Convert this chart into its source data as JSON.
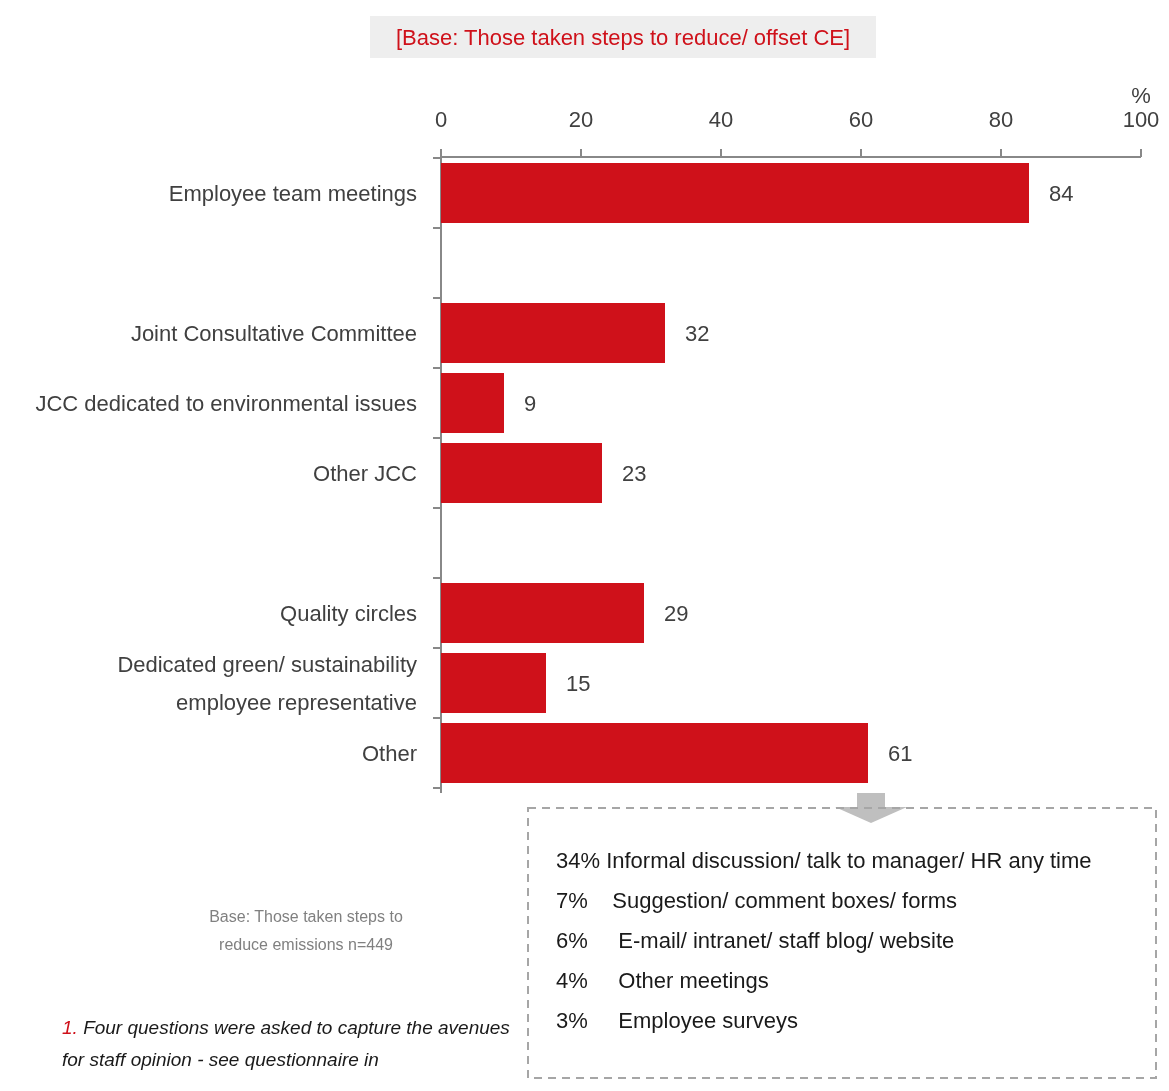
{
  "chart_data": {
    "type": "bar",
    "orientation": "horizontal",
    "title": "[Base: Those taken steps to reduce/ offset CE]",
    "xlabel": "%",
    "categories": [
      "Employee team meetings",
      null,
      "Joint Consultative Committee",
      "JCC dedicated to environmental issues",
      "Other JCC",
      null,
      "Quality circles",
      "Dedicated green/ sustainability employee representative",
      "Other"
    ],
    "values": [
      84,
      null,
      32,
      9,
      23,
      null,
      29,
      15,
      61
    ],
    "color": "#cf111a",
    "xlim": [
      0,
      100
    ],
    "xticks": [
      0,
      20,
      40,
      60,
      80,
      100
    ],
    "grid": false,
    "data_labels": true,
    "annotations": [
      "34% Informal discussion/ talk to manager/ HR any time",
      "7%    Suggestion/ comment boxes/ forms",
      "6%     E-mail/ intranet/ staff blog/ website",
      "4%     Other meetings",
      "3%     Employee surveys",
      "Base: Those taken steps to reduce emissions n=449",
      "1. Four questions were asked to capture the avenues for staff opinion - see questionnaire in"
    ]
  }
}
